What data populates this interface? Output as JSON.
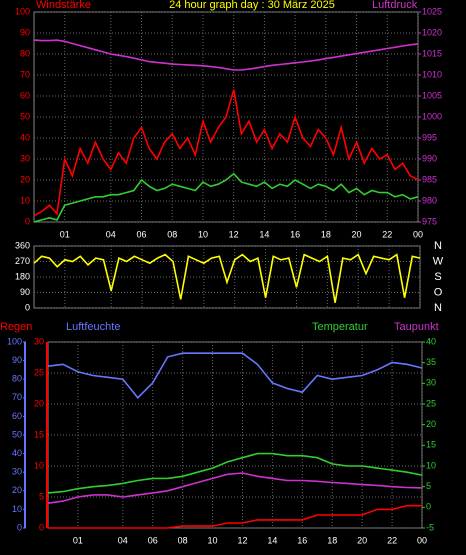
{
  "chart_data": [
    {
      "type": "line",
      "title": "24 hour graph day : 30 März 2025",
      "ylabel": "Windstärke",
      "y2label": "Luftdruck",
      "ycolor": "#ff0000",
      "y2color": "#cc33cc",
      "xlim": [
        -1,
        24
      ],
      "xticks": [
        {
          "value": 1,
          "label": "01"
        },
        {
          "value": 4,
          "label": "04"
        },
        {
          "value": 6,
          "label": "06"
        },
        {
          "value": 8,
          "label": "08"
        },
        10,
        12,
        14,
        16,
        18,
        20,
        22,
        {
          "value": 24,
          "label": "00"
        }
      ],
      "ylim": [
        0,
        100
      ],
      "yticks": [
        0,
        10,
        20,
        30,
        40,
        50,
        60,
        70,
        80,
        90,
        100
      ],
      "y2lim": [
        975,
        1025
      ],
      "y2ticks": [
        975,
        980,
        985,
        990,
        995,
        1000,
        1005,
        1010,
        1015,
        1020,
        1025
      ],
      "grid": true,
      "x": [
        -1,
        -0.5,
        0,
        0.5,
        1,
        1.5,
        2,
        2.5,
        3,
        3.5,
        4,
        4.5,
        5,
        5.5,
        6,
        6.5,
        7,
        7.5,
        8,
        8.5,
        9,
        9.5,
        10,
        10.5,
        11,
        11.5,
        12,
        12.5,
        13,
        13.5,
        14,
        14.5,
        15,
        15.5,
        16,
        16.5,
        17,
        17.5,
        18,
        18.5,
        19,
        19.5,
        20,
        20.5,
        21,
        21.5,
        22,
        22.5,
        23,
        23.5,
        24
      ],
      "series": [
        {
          "color": "#ff0000",
          "values": [
            3,
            5,
            8,
            4,
            30,
            22,
            35,
            28,
            38,
            30,
            25,
            33,
            28,
            40,
            45,
            35,
            30,
            38,
            42,
            35,
            40,
            32,
            48,
            38,
            45,
            50,
            63,
            42,
            48,
            38,
            44,
            35,
            42,
            38,
            50,
            40,
            36,
            44,
            40,
            32,
            45,
            30,
            38,
            28,
            35,
            30,
            32,
            25,
            28,
            22,
            20
          ]
        },
        {
          "color": "#33cc33",
          "values": [
            0,
            1,
            2,
            1,
            8,
            9,
            10,
            11,
            12,
            12,
            13,
            13,
            14,
            15,
            20,
            17,
            15,
            16,
            18,
            17,
            16,
            15,
            19,
            17,
            18,
            20,
            23,
            19,
            18,
            17,
            19,
            16,
            18,
            17,
            20,
            18,
            16,
            18,
            17,
            15,
            18,
            14,
            16,
            13,
            15,
            14,
            14,
            12,
            13,
            11,
            12
          ]
        },
        {
          "color": "#cc33cc",
          "axis": "y2",
          "values": [
            1018.3,
            1018.2,
            1018.2,
            1018.3,
            1018.0,
            1017.5,
            1017.0,
            1016.5,
            1016.0,
            1015.5,
            1015.0,
            1014.7,
            1014.4,
            1014.0,
            1013.6,
            1013.2,
            1013.0,
            1012.8,
            1012.6,
            1012.5,
            1012.4,
            1012.3,
            1012.2,
            1012.0,
            1011.8,
            1011.5,
            1011.2,
            1011.2,
            1011.4,
            1011.7,
            1012.0,
            1012.3,
            1012.5,
            1012.7,
            1012.9,
            1013.1,
            1013.3,
            1013.6,
            1013.9,
            1014.2,
            1014.5,
            1014.8,
            1015.1,
            1015.4,
            1015.7,
            1016.0,
            1016.3,
            1016.6,
            1016.9,
            1017.2,
            1017.4
          ]
        }
      ]
    },
    {
      "type": "line",
      "ycolor": "#ffffff",
      "xlim": [
        -1,
        24
      ],
      "xticks": [
        {
          "value": 1,
          "label": "01"
        },
        {
          "value": 4,
          "label": "04"
        },
        {
          "value": 6,
          "label": "06"
        },
        {
          "value": 8,
          "label": "08"
        },
        10,
        12,
        14,
        16,
        18,
        20,
        22,
        {
          "value": 24,
          "label": "00"
        }
      ],
      "ylim": [
        0,
        360
      ],
      "yticks": [
        0,
        90,
        180,
        270,
        360
      ],
      "grid": true,
      "direction_labels": [
        "N",
        "W",
        "S",
        "O",
        "N"
      ],
      "x": [
        -1,
        -0.5,
        0,
        0.5,
        1,
        1.5,
        2,
        2.5,
        3,
        3.5,
        4,
        4.5,
        5,
        5.5,
        6,
        6.5,
        7,
        7.5,
        8,
        8.5,
        9,
        9.5,
        10,
        10.5,
        11,
        11.5,
        12,
        12.5,
        13,
        13.5,
        14,
        14.5,
        15,
        15.5,
        16,
        16.5,
        17,
        17.5,
        18,
        18.5,
        19,
        19.5,
        20,
        20.5,
        21,
        21.5,
        22,
        22.5,
        23,
        23.5,
        24
      ],
      "series": [
        {
          "color": "#ffff00",
          "values": [
            260,
            300,
            290,
            240,
            280,
            270,
            300,
            250,
            290,
            280,
            100,
            290,
            270,
            300,
            280,
            260,
            290,
            310,
            270,
            50,
            300,
            280,
            260,
            290,
            300,
            150,
            280,
            310,
            270,
            290,
            60,
            300,
            280,
            290,
            120,
            310,
            290,
            270,
            300,
            30,
            290,
            280,
            310,
            200,
            300,
            290,
            280,
            310,
            60,
            300,
            290
          ]
        }
      ]
    },
    {
      "type": "line",
      "xlim": [
        -1,
        24
      ],
      "xticks": [
        {
          "value": 1,
          "label": "01"
        },
        {
          "value": 4,
          "label": "04"
        },
        {
          "value": 6,
          "label": "06"
        },
        {
          "value": 8,
          "label": "08"
        },
        10,
        12,
        14,
        16,
        18,
        20,
        22,
        {
          "value": 24,
          "label": "00"
        }
      ],
      "ylim": [
        0,
        30
      ],
      "yticks": [
        0,
        5,
        10,
        15,
        20,
        25,
        30
      ],
      "ycolor": "#ff0000",
      "y3lim": [
        0,
        100
      ],
      "y3ticks": [
        0,
        10,
        20,
        30,
        40,
        50,
        60,
        70,
        80,
        90,
        100
      ],
      "y3color": "#6677ff",
      "y2lim": [
        -5,
        40
      ],
      "y2ticks": [
        -5,
        0,
        5,
        10,
        15,
        20,
        25,
        30,
        35,
        40
      ],
      "y2color": "#33cc33",
      "grid": true,
      "x": [
        -1,
        0,
        1,
        2,
        3,
        4,
        5,
        6,
        7,
        8,
        9,
        10,
        11,
        12,
        13,
        14,
        15,
        16,
        17,
        18,
        19,
        20,
        21,
        22,
        23,
        24
      ],
      "series": [
        {
          "name": "Regen",
          "color": "#ff0000",
          "values": [
            0,
            0,
            0,
            0,
            0,
            0,
            0,
            0,
            0,
            0.3,
            0.3,
            0.3,
            0.8,
            0.8,
            1.3,
            1.3,
            1.3,
            1.3,
            2.1,
            2.1,
            2.1,
            2.1,
            3.0,
            3.0,
            3.6,
            3.6
          ]
        },
        {
          "name": "Luftfeuchte",
          "color": "#6677ff",
          "axis": "y3",
          "values": [
            87,
            88,
            84,
            82,
            81,
            80,
            70,
            78,
            92,
            94,
            94,
            94,
            94,
            94,
            88,
            78,
            75,
            73,
            82,
            80,
            81,
            82,
            85,
            89,
            88,
            86
          ]
        },
        {
          "name": "Temperatur",
          "color": "#33cc33",
          "axis": "y2",
          "values": [
            3.5,
            3.8,
            4.5,
            5,
            5.3,
            5.8,
            6.5,
            7,
            7,
            7.5,
            8.5,
            9.5,
            11,
            12,
            13,
            13,
            12.5,
            12.5,
            12,
            10.5,
            10,
            10,
            9.5,
            9,
            8.5,
            7.8
          ]
        },
        {
          "name": "Taupunkt",
          "color": "#cc33cc",
          "axis": "y2",
          "values": [
            1,
            1.5,
            2.5,
            3,
            3,
            2.5,
            3,
            3.5,
            4,
            5,
            6,
            7,
            8,
            8.3,
            7.5,
            7,
            6.5,
            6.5,
            6.3,
            6,
            5.8,
            5.5,
            5.3,
            5,
            4.8,
            4.7
          ]
        }
      ]
    }
  ]
}
